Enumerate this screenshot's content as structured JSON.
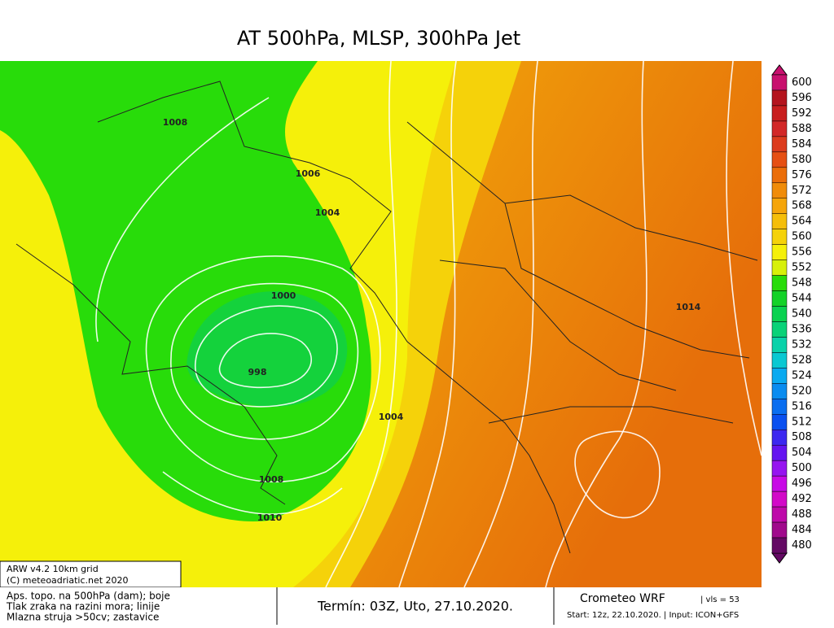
{
  "title": "AT 500hPa, MLSP, 300hPa Jet",
  "contour_labels": [
    "1008",
    "1006",
    "1004",
    "1000",
    "998",
    "1004",
    "1008",
    "1010",
    "1014"
  ],
  "colorbar": {
    "levels": [
      "600",
      "596",
      "592",
      "588",
      "584",
      "580",
      "576",
      "572",
      "568",
      "564",
      "560",
      "556",
      "552",
      "548",
      "544",
      "540",
      "536",
      "532",
      "528",
      "524",
      "520",
      "516",
      "512",
      "508",
      "504",
      "500",
      "496",
      "492",
      "488",
      "484",
      "480"
    ],
    "colors": [
      "#c8106e",
      "#b4141e",
      "#c81e1e",
      "#d22828",
      "#dc3c1e",
      "#e65014",
      "#eb6e0a",
      "#f08c0a",
      "#f5a50a",
      "#f5be0a",
      "#f5d20a",
      "#f5f00a",
      "#d7f00a",
      "#28dc0a",
      "#14d228",
      "#0ad250",
      "#0ad278",
      "#0ad2aa",
      "#0ac8d2",
      "#0aaaf0",
      "#0a8cf0",
      "#0a6ef0",
      "#0a50f0",
      "#3c28f0",
      "#6414f0",
      "#9614f0",
      "#c80ae6",
      "#d20ac8",
      "#be0aaa",
      "#a00a8c",
      "#640a64"
    ]
  },
  "model_box": [
    "ARW v4.2 10km grid",
    "(C) meteoadriatic.net 2020"
  ],
  "legend_text": [
    "Aps. topo. na 500hPa (dam); boje",
    "Tlak zraka na razini mora; linije",
    "Mlazna struja >50cv; zastavice"
  ],
  "term": "Termín: 03Z, Uto, 27.10.2020.",
  "model_info": {
    "name": "Crometeo WRF",
    "vls": "| vls = 53",
    "start": "Start: 12z, 22.10.2020. | Input: ICON+GFS"
  }
}
